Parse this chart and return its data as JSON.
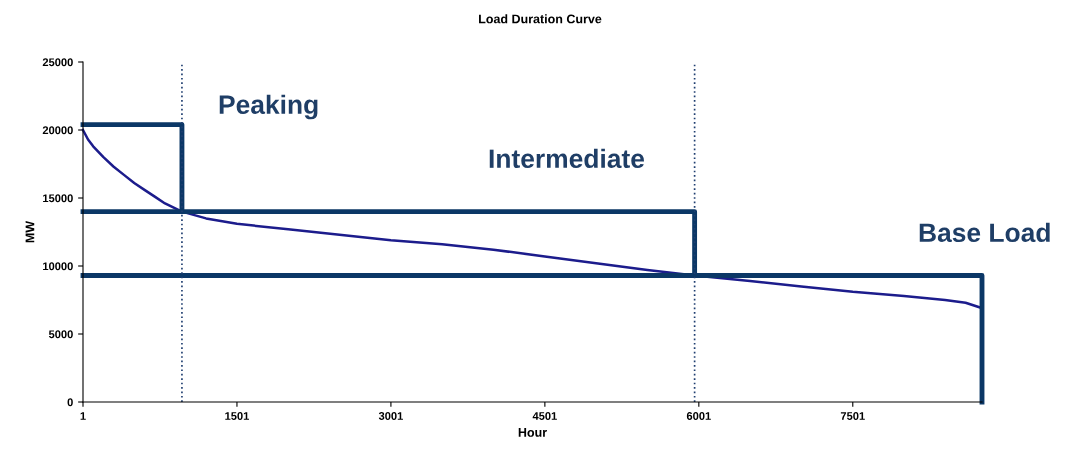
{
  "chart_data": {
    "type": "line",
    "title": "Load Duration Curve",
    "xlabel": "Hour",
    "ylabel": "MW",
    "xlim": [
      1,
      8760
    ],
    "xticks": [
      1,
      1501,
      3001,
      4501,
      6001,
      7501
    ],
    "ylim": [
      0,
      25000
    ],
    "yticks": [
      0,
      5000,
      10000,
      15000,
      20000,
      25000
    ],
    "grid": false,
    "legend": false,
    "marker": "none",
    "line_style": "solid",
    "series": [
      {
        "color": "#1c1c8c",
        "x": [
          1,
          50,
          100,
          200,
          300,
          400,
          500,
          600,
          700,
          800,
          965,
          1200,
          1501,
          2000,
          2500,
          3001,
          3500,
          4000,
          4501,
          5000,
          5500,
          5960,
          6500,
          7000,
          7501,
          8000,
          8400,
          8600,
          8760
        ],
        "values": [
          20000,
          19300,
          18800,
          18000,
          17300,
          16700,
          16100,
          15600,
          15100,
          14600,
          14000,
          13500,
          13100,
          12700,
          12300,
          11900,
          11600,
          11200,
          10700,
          10200,
          9700,
          9300,
          8900,
          8500,
          8100,
          7800,
          7500,
          7300,
          6900
        ]
      },
      {
        "color": "#0b3766",
        "x": [
          1,
          965,
          965
        ],
        "values": [
          20400,
          20400,
          14000
        ]
      },
      {
        "color": "#0b3766",
        "x": [
          1,
          5960,
          5960
        ],
        "values": [
          14000,
          14000,
          9300
        ]
      },
      {
        "color": "#0b3766",
        "x": [
          1,
          8760,
          8760
        ],
        "values": [
          9300,
          9300,
          0
        ]
      }
    ],
    "ref_lines": [
      {
        "axis": "x",
        "value": 965,
        "color": "#1f3e70",
        "line_style": "dotted"
      },
      {
        "axis": "x",
        "value": 5960,
        "color": "#1f3e70",
        "line_style": "dotted"
      }
    ],
    "annotations": [
      "Peaking",
      "Intermediate",
      "Base Load"
    ]
  }
}
